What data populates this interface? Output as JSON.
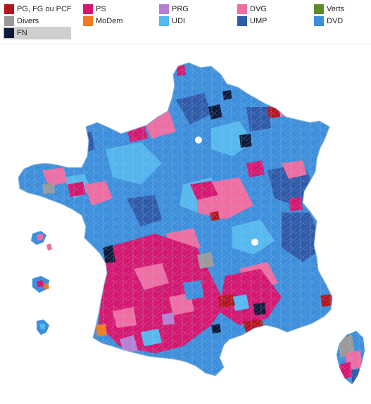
{
  "legend": {
    "items": [
      {
        "label": "PG, FG ou PCF",
        "color": "#b4151c"
      },
      {
        "label": "PS",
        "color": "#d6166f"
      },
      {
        "label": "PRG",
        "color": "#b67fd2"
      },
      {
        "label": "DVG",
        "color": "#f06ca1"
      },
      {
        "label": "Verts",
        "color": "#5f8a2a"
      },
      {
        "label": "Divers",
        "color": "#9a9a9a"
      },
      {
        "label": "MoDem",
        "color": "#f07a21"
      },
      {
        "label": "UDI",
        "color": "#55b9ee"
      },
      {
        "label": "UMP",
        "color": "#2f5aa8"
      },
      {
        "label": "DVD",
        "color": "#3d8fdc"
      },
      {
        "label": "FN",
        "color": "#0d1a3a"
      }
    ],
    "selected_label": "FN"
  },
  "map": {
    "base_color": "#3d8fdc",
    "border_color": "#a9c6e4"
  }
}
